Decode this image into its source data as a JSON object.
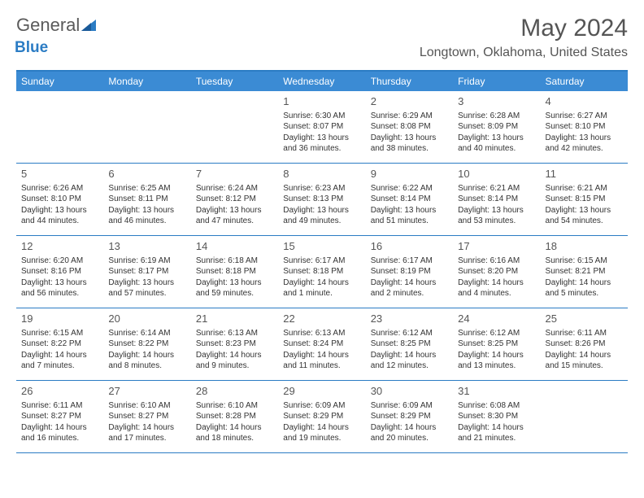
{
  "brand": {
    "part1": "General",
    "part2": "Blue"
  },
  "title": "May 2024",
  "location": "Longtown, Oklahoma, United States",
  "colors": {
    "header_bg": "#3b8bd4",
    "border": "#2b7cc4",
    "text": "#333333",
    "title_text": "#555555"
  },
  "day_headers": [
    "Sunday",
    "Monday",
    "Tuesday",
    "Wednesday",
    "Thursday",
    "Friday",
    "Saturday"
  ],
  "weeks": [
    [
      null,
      null,
      null,
      {
        "n": "1",
        "sr": "6:30 AM",
        "ss": "8:07 PM",
        "dl": "13 hours and 36 minutes."
      },
      {
        "n": "2",
        "sr": "6:29 AM",
        "ss": "8:08 PM",
        "dl": "13 hours and 38 minutes."
      },
      {
        "n": "3",
        "sr": "6:28 AM",
        "ss": "8:09 PM",
        "dl": "13 hours and 40 minutes."
      },
      {
        "n": "4",
        "sr": "6:27 AM",
        "ss": "8:10 PM",
        "dl": "13 hours and 42 minutes."
      }
    ],
    [
      {
        "n": "5",
        "sr": "6:26 AM",
        "ss": "8:10 PM",
        "dl": "13 hours and 44 minutes."
      },
      {
        "n": "6",
        "sr": "6:25 AM",
        "ss": "8:11 PM",
        "dl": "13 hours and 46 minutes."
      },
      {
        "n": "7",
        "sr": "6:24 AM",
        "ss": "8:12 PM",
        "dl": "13 hours and 47 minutes."
      },
      {
        "n": "8",
        "sr": "6:23 AM",
        "ss": "8:13 PM",
        "dl": "13 hours and 49 minutes."
      },
      {
        "n": "9",
        "sr": "6:22 AM",
        "ss": "8:14 PM",
        "dl": "13 hours and 51 minutes."
      },
      {
        "n": "10",
        "sr": "6:21 AM",
        "ss": "8:14 PM",
        "dl": "13 hours and 53 minutes."
      },
      {
        "n": "11",
        "sr": "6:21 AM",
        "ss": "8:15 PM",
        "dl": "13 hours and 54 minutes."
      }
    ],
    [
      {
        "n": "12",
        "sr": "6:20 AM",
        "ss": "8:16 PM",
        "dl": "13 hours and 56 minutes."
      },
      {
        "n": "13",
        "sr": "6:19 AM",
        "ss": "8:17 PM",
        "dl": "13 hours and 57 minutes."
      },
      {
        "n": "14",
        "sr": "6:18 AM",
        "ss": "8:18 PM",
        "dl": "13 hours and 59 minutes."
      },
      {
        "n": "15",
        "sr": "6:17 AM",
        "ss": "8:18 PM",
        "dl": "14 hours and 1 minute."
      },
      {
        "n": "16",
        "sr": "6:17 AM",
        "ss": "8:19 PM",
        "dl": "14 hours and 2 minutes."
      },
      {
        "n": "17",
        "sr": "6:16 AM",
        "ss": "8:20 PM",
        "dl": "14 hours and 4 minutes."
      },
      {
        "n": "18",
        "sr": "6:15 AM",
        "ss": "8:21 PM",
        "dl": "14 hours and 5 minutes."
      }
    ],
    [
      {
        "n": "19",
        "sr": "6:15 AM",
        "ss": "8:22 PM",
        "dl": "14 hours and 7 minutes."
      },
      {
        "n": "20",
        "sr": "6:14 AM",
        "ss": "8:22 PM",
        "dl": "14 hours and 8 minutes."
      },
      {
        "n": "21",
        "sr": "6:13 AM",
        "ss": "8:23 PM",
        "dl": "14 hours and 9 minutes."
      },
      {
        "n": "22",
        "sr": "6:13 AM",
        "ss": "8:24 PM",
        "dl": "14 hours and 11 minutes."
      },
      {
        "n": "23",
        "sr": "6:12 AM",
        "ss": "8:25 PM",
        "dl": "14 hours and 12 minutes."
      },
      {
        "n": "24",
        "sr": "6:12 AM",
        "ss": "8:25 PM",
        "dl": "14 hours and 13 minutes."
      },
      {
        "n": "25",
        "sr": "6:11 AM",
        "ss": "8:26 PM",
        "dl": "14 hours and 15 minutes."
      }
    ],
    [
      {
        "n": "26",
        "sr": "6:11 AM",
        "ss": "8:27 PM",
        "dl": "14 hours and 16 minutes."
      },
      {
        "n": "27",
        "sr": "6:10 AM",
        "ss": "8:27 PM",
        "dl": "14 hours and 17 minutes."
      },
      {
        "n": "28",
        "sr": "6:10 AM",
        "ss": "8:28 PM",
        "dl": "14 hours and 18 minutes."
      },
      {
        "n": "29",
        "sr": "6:09 AM",
        "ss": "8:29 PM",
        "dl": "14 hours and 19 minutes."
      },
      {
        "n": "30",
        "sr": "6:09 AM",
        "ss": "8:29 PM",
        "dl": "14 hours and 20 minutes."
      },
      {
        "n": "31",
        "sr": "6:08 AM",
        "ss": "8:30 PM",
        "dl": "14 hours and 21 minutes."
      },
      null
    ]
  ],
  "labels": {
    "sunrise": "Sunrise:",
    "sunset": "Sunset:",
    "daylight": "Daylight:"
  }
}
